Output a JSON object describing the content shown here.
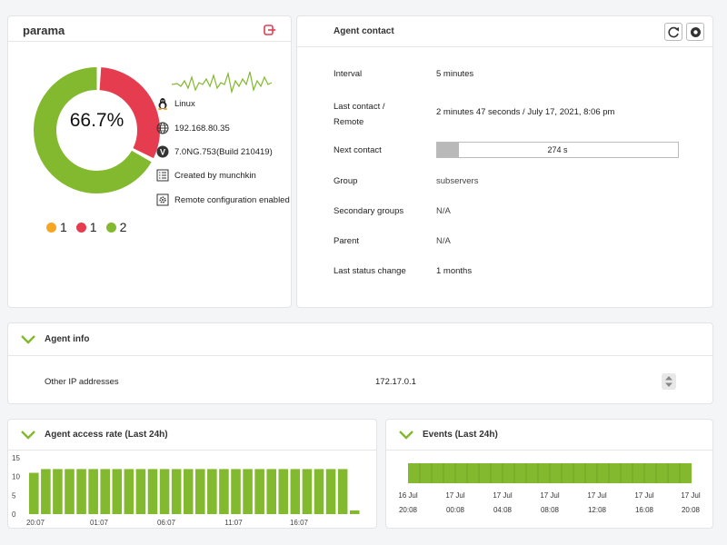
{
  "agent": {
    "name": "parama",
    "percent": "66.7%",
    "legend": [
      {
        "label": "1",
        "color": "#f5a623"
      },
      {
        "label": "1",
        "color": "#e63c50"
      },
      {
        "label": "2",
        "color": "#82b92e"
      }
    ],
    "os": "Linux",
    "ip": "192.168.80.35",
    "version": "7.0NG.753(Build 210419)",
    "created_by": "Created by munchkin",
    "remote_config": "Remote configuration enabled"
  },
  "contact": {
    "title": "Agent contact",
    "rows": [
      {
        "label": "Interval",
        "value": "5 minutes"
      },
      {
        "label1": "Last contact /",
        "label2": "Remote",
        "value": "2 minutes 47 seconds / July 17, 2021, 8:06 pm"
      },
      {
        "label": "Next contact",
        "value": "274 s",
        "progress": 0.09
      },
      {
        "label": "Group",
        "value": "subservers"
      },
      {
        "label": "Secondary groups",
        "value": "N/A"
      },
      {
        "label": "Parent",
        "value": "N/A"
      },
      {
        "label": "Last status change",
        "value": "1 months"
      }
    ]
  },
  "info": {
    "title": "Agent info",
    "label": "Other IP addresses",
    "value": "172.17.0.1"
  },
  "access_chart": {
    "title": "Agent access rate (Last 24h)"
  },
  "events_chart": {
    "title": "Events (Last 24h)"
  },
  "chart_data": [
    {
      "type": "bar",
      "title": "Agent access rate (Last 24h)",
      "ylim": [
        0,
        15
      ],
      "yticks": [
        "15",
        "10",
        "5",
        "0"
      ],
      "xticks": [
        "20:07",
        "01:07",
        "06:07",
        "11:07",
        "16:07"
      ],
      "values": [
        11,
        12,
        12,
        12,
        12,
        12,
        12,
        12,
        12,
        12,
        12,
        12,
        12,
        12,
        12,
        12,
        12,
        12,
        12,
        12,
        12,
        12,
        12,
        12,
        12,
        12,
        12,
        1
      ]
    },
    {
      "type": "bar",
      "title": "Events (Last 24h)",
      "segments": 24,
      "color": "#82b92e",
      "xticks": [
        {
          "d": "16 Jul",
          "t": "20:08"
        },
        {
          "d": "17 Jul",
          "t": "00:08"
        },
        {
          "d": "17 Jul",
          "t": "04:08"
        },
        {
          "d": "17 Jul",
          "t": "08:08"
        },
        {
          "d": "17 Jul",
          "t": "12:08"
        },
        {
          "d": "17 Jul",
          "t": "16:08"
        },
        {
          "d": "17 Jul",
          "t": "20:08"
        }
      ]
    }
  ],
  "colors": {
    "green": "#82b92e",
    "red": "#e63c50",
    "orange": "#f5a623"
  }
}
